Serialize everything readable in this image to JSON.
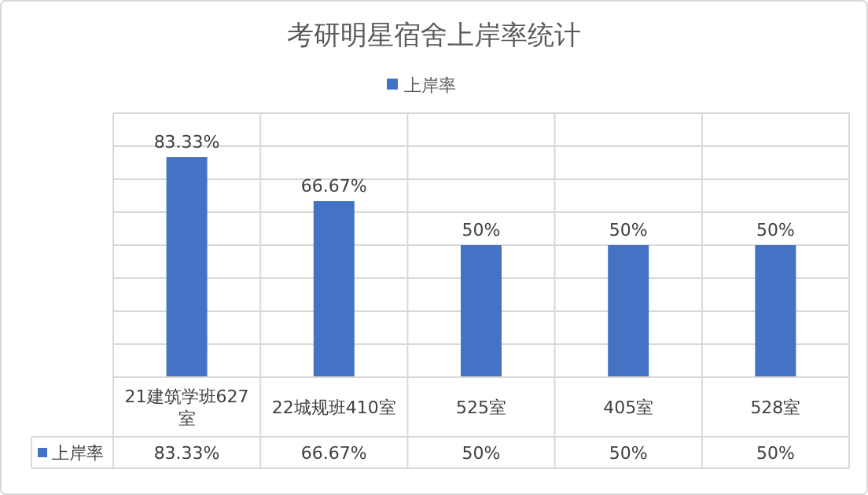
{
  "chart_data": {
    "type": "bar",
    "title": "考研明星宿舍上岸率统计",
    "categories": [
      "21建筑学班627室",
      "22城规班410室",
      "525室",
      "405室",
      "528室"
    ],
    "series": [
      {
        "name": "上岸率",
        "color": "#4472c4",
        "values": [
          83.33,
          66.67,
          50,
          50,
          50
        ],
        "value_labels": [
          "83.33%",
          "66.67%",
          "50%",
          "50%",
          "50%"
        ]
      }
    ],
    "ylim": [
      0,
      100
    ],
    "yticks": [
      {
        "value": 0,
        "label": null
      },
      {
        "value": 12.5,
        "label": null
      },
      {
        "value": 25,
        "label": null
      },
      {
        "value": 37.5,
        "label": null
      },
      {
        "value": 50,
        "label": null
      },
      {
        "value": 62.5,
        "label": null
      },
      {
        "value": 75,
        "label": null
      },
      {
        "value": 87.5,
        "label": null
      },
      {
        "value": 100,
        "label": null
      }
    ],
    "grid": "y",
    "legend": "top"
  }
}
